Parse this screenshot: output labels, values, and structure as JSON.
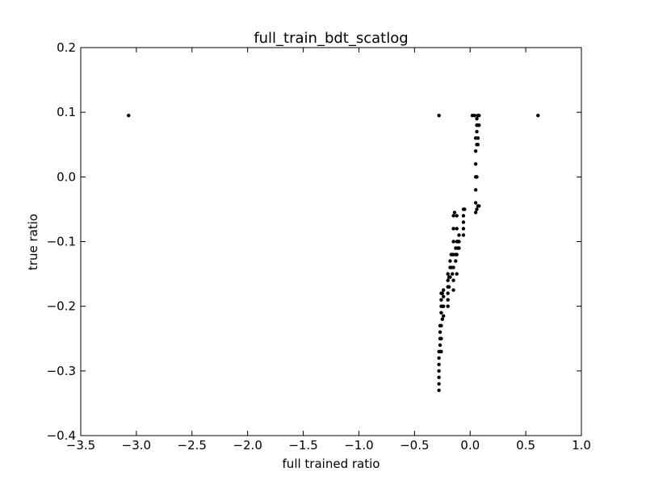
{
  "chart_data": {
    "type": "scatter",
    "title": "full_train_bdt_scatlog",
    "xlabel": "full trained ratio",
    "ylabel": "true ratio",
    "xlim": [
      -3.5,
      1.0
    ],
    "ylim": [
      -0.4,
      0.2
    ],
    "xticks": [
      -3.5,
      -3.0,
      -2.5,
      -2.0,
      -1.5,
      -1.0,
      -0.5,
      0.0,
      0.5,
      1.0
    ],
    "xtick_labels": [
      "−3.5",
      "−3.0",
      "−2.5",
      "−2.0",
      "−1.5",
      "−1.0",
      "−0.5",
      "0.0",
      "0.5",
      "1.0"
    ],
    "yticks": [
      -0.4,
      -0.3,
      -0.2,
      -0.1,
      0.0,
      0.1,
      0.2
    ],
    "ytick_labels": [
      "−0.4",
      "−0.3",
      "−0.2",
      "−0.1",
      "0.0",
      "0.1",
      "0.2"
    ],
    "grid": false,
    "marker_color": "#000000",
    "points": [
      {
        "x": -3.07,
        "y": 0.095
      },
      {
        "x": -0.28,
        "y": 0.095
      },
      {
        "x": 0.02,
        "y": 0.095
      },
      {
        "x": 0.61,
        "y": 0.095
      },
      {
        "x": -0.28,
        "y": -0.33
      },
      {
        "x": -0.28,
        "y": -0.32
      },
      {
        "x": -0.28,
        "y": -0.31
      },
      {
        "x": -0.28,
        "y": -0.3
      },
      {
        "x": -0.28,
        "y": -0.29
      },
      {
        "x": -0.28,
        "y": -0.28
      },
      {
        "x": -0.28,
        "y": -0.27
      },
      {
        "x": -0.27,
        "y": -0.27
      },
      {
        "x": -0.27,
        "y": -0.26
      },
      {
        "x": -0.27,
        "y": -0.25
      },
      {
        "x": -0.27,
        "y": -0.24
      },
      {
        "x": -0.27,
        "y": -0.23
      },
      {
        "x": -0.26,
        "y": -0.27
      },
      {
        "x": -0.26,
        "y": -0.25
      },
      {
        "x": -0.26,
        "y": -0.23
      },
      {
        "x": -0.26,
        "y": -0.21
      },
      {
        "x": -0.26,
        "y": -0.2
      },
      {
        "x": -0.26,
        "y": -0.19
      },
      {
        "x": -0.26,
        "y": -0.18
      },
      {
        "x": -0.25,
        "y": -0.22
      },
      {
        "x": -0.25,
        "y": -0.2
      },
      {
        "x": -0.25,
        "y": -0.18
      },
      {
        "x": -0.24,
        "y": -0.215
      },
      {
        "x": -0.24,
        "y": -0.2
      },
      {
        "x": -0.24,
        "y": -0.185
      },
      {
        "x": -0.24,
        "y": -0.175
      },
      {
        "x": -0.2,
        "y": -0.2
      },
      {
        "x": -0.2,
        "y": -0.19
      },
      {
        "x": -0.2,
        "y": -0.18
      },
      {
        "x": -0.2,
        "y": -0.17
      },
      {
        "x": -0.2,
        "y": -0.16
      },
      {
        "x": -0.2,
        "y": -0.15
      },
      {
        "x": -0.19,
        "y": -0.17
      },
      {
        "x": -0.19,
        "y": -0.155
      },
      {
        "x": -0.18,
        "y": -0.155
      },
      {
        "x": -0.18,
        "y": -0.14
      },
      {
        "x": -0.18,
        "y": -0.13
      },
      {
        "x": -0.17,
        "y": -0.14
      },
      {
        "x": -0.17,
        "y": -0.12
      },
      {
        "x": -0.16,
        "y": -0.12
      },
      {
        "x": -0.16,
        "y": -0.15
      },
      {
        "x": -0.15,
        "y": -0.175
      },
      {
        "x": -0.15,
        "y": -0.16
      },
      {
        "x": -0.15,
        "y": -0.14
      },
      {
        "x": -0.15,
        "y": -0.12
      },
      {
        "x": -0.15,
        "y": -0.1
      },
      {
        "x": -0.15,
        "y": -0.08
      },
      {
        "x": -0.15,
        "y": -0.06
      },
      {
        "x": -0.14,
        "y": -0.055
      },
      {
        "x": -0.13,
        "y": -0.13
      },
      {
        "x": -0.13,
        "y": -0.12
      },
      {
        "x": -0.13,
        "y": -0.11
      },
      {
        "x": -0.12,
        "y": -0.15
      },
      {
        "x": -0.12,
        "y": -0.12
      },
      {
        "x": -0.12,
        "y": -0.1
      },
      {
        "x": -0.12,
        "y": -0.08
      },
      {
        "x": -0.12,
        "y": -0.06
      },
      {
        "x": -0.11,
        "y": -0.11
      },
      {
        "x": -0.11,
        "y": -0.1
      },
      {
        "x": -0.1,
        "y": -0.11
      },
      {
        "x": -0.1,
        "y": -0.1
      },
      {
        "x": -0.1,
        "y": -0.09
      },
      {
        "x": -0.06,
        "y": -0.09
      },
      {
        "x": -0.06,
        "y": -0.08
      },
      {
        "x": -0.06,
        "y": -0.07
      },
      {
        "x": -0.06,
        "y": -0.06
      },
      {
        "x": -0.06,
        "y": -0.05
      },
      {
        "x": -0.05,
        "y": -0.05
      },
      {
        "x": 0.05,
        "y": -0.055
      },
      {
        "x": 0.05,
        "y": -0.04
      },
      {
        "x": 0.05,
        "y": -0.02
      },
      {
        "x": 0.05,
        "y": 0.0
      },
      {
        "x": 0.05,
        "y": 0.02
      },
      {
        "x": 0.05,
        "y": 0.04
      },
      {
        "x": 0.05,
        "y": 0.06
      },
      {
        "x": 0.06,
        "y": -0.05
      },
      {
        "x": 0.06,
        "y": 0.0
      },
      {
        "x": 0.06,
        "y": 0.05
      },
      {
        "x": 0.06,
        "y": 0.07
      },
      {
        "x": 0.06,
        "y": 0.08
      },
      {
        "x": 0.06,
        "y": 0.09
      },
      {
        "x": 0.07,
        "y": 0.095
      },
      {
        "x": 0.07,
        "y": 0.08
      },
      {
        "x": 0.07,
        "y": 0.06
      },
      {
        "x": 0.07,
        "y": 0.05
      },
      {
        "x": 0.07,
        "y": -0.045
      },
      {
        "x": 0.08,
        "y": 0.095
      },
      {
        "x": 0.08,
        "y": 0.08
      },
      {
        "x": 0.08,
        "y": -0.045
      },
      {
        "x": 0.04,
        "y": 0.095
      }
    ]
  }
}
